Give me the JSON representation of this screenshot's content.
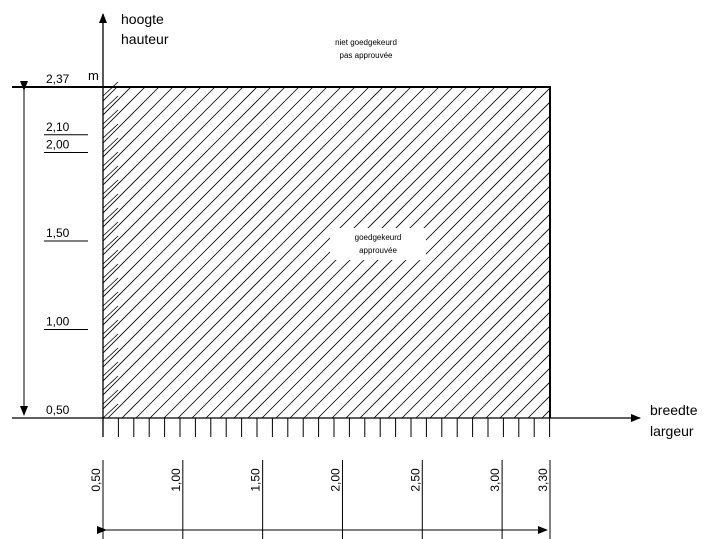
{
  "y_axis": {
    "labels": [
      "hoogte",
      "hauteur"
    ],
    "unit": "m",
    "ticks": [
      {
        "value": 2.37,
        "label": "2,37"
      },
      {
        "value": 2.1,
        "label": "2,10"
      },
      {
        "value": 2.0,
        "label": "2,00"
      },
      {
        "value": 1.5,
        "label": "1,50"
      },
      {
        "value": 1.0,
        "label": "1,00"
      },
      {
        "value": 0.5,
        "label": "0,50"
      }
    ]
  },
  "x_axis": {
    "labels": [
      "breedte",
      "largeur"
    ],
    "ticks": [
      {
        "value": 0.5,
        "label": "0,50"
      },
      {
        "value": 1.0,
        "label": "1,00"
      },
      {
        "value": 1.5,
        "label": "1,50"
      },
      {
        "value": 2.0,
        "label": "2,00"
      },
      {
        "value": 2.5,
        "label": "2,50"
      },
      {
        "value": 3.0,
        "label": "3,00"
      },
      {
        "value": 3.3,
        "label": "3,30"
      }
    ]
  },
  "regions": {
    "outside": [
      "niet goedgekeurd",
      "pas approuvée"
    ],
    "inside": [
      "goedgekeurd",
      "approuvée"
    ]
  }
}
